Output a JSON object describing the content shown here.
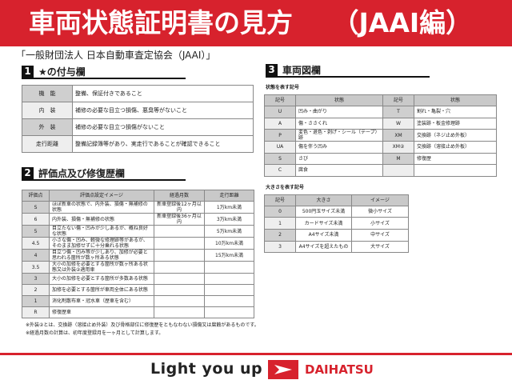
{
  "header": {
    "title": "車両状態証明書の見方　　（JAAI編）"
  },
  "subtitle": "「一般財団法人 日本自動車査定協会（JAAI）」",
  "section1": {
    "num": "1",
    "title": "★の付与欄",
    "rows": [
      {
        "k": "機　能",
        "v": "整備、保証付きであること"
      },
      {
        "k": "内　装",
        "v": "補修の必要な目立つ損傷、悪臭等がないこと"
      },
      {
        "k": "外　装",
        "v": "補修の必要な目立つ損傷がないこと"
      },
      {
        "k": "走行距離",
        "v": "整備記録簿等があり、実走行であることが確認できること"
      }
    ]
  },
  "section2": {
    "num": "2",
    "title": "評価点及び修復歴欄",
    "headers": [
      "評価点",
      "評価点設定イメージ",
      "経過月数",
      "走行距離"
    ],
    "rows": [
      [
        "S",
        "ほぼ新車の状態で、内外装、損傷・無補修の状態",
        "新車登録後12ヶ月以内",
        "1万km未満"
      ],
      [
        "6",
        "内外装、損傷・無補修の状態",
        "新車登録後36ヶ月以内",
        "3万km未満"
      ],
      [
        "5",
        "目立たない傷・凹みが少しあるが、概ね良好な状態",
        "",
        "5万km未満"
      ],
      [
        "4.5",
        "小さな傷・凹み、軽微な修理跡等があるが、そのまま加修せずに十分乗れる状態",
        "",
        "10万km未満"
      ],
      [
        "4",
        "目立つ傷・凹み等が少しあり、加修が必要と思われる箇所が数ヶ所ある状態",
        "",
        "15万km未満"
      ],
      [
        "3.5",
        "大小の加修を必要とする箇所が数ヶ所ある状態又は外装②適用車",
        "",
        ""
      ],
      [
        "3",
        "大小の加修を必要とする箇所が多数ある状態",
        "",
        ""
      ],
      [
        "2",
        "加修を必要とする箇所が車両全体にある状態",
        "",
        ""
      ],
      [
        "1",
        "消化剤散布車・冠水車（歴車を含む）",
        "",
        ""
      ],
      [
        "R",
        "修復歴車",
        "",
        ""
      ]
    ]
  },
  "notes": [
    "※外装②とは、交換跡（溶接止め外装）及び骨格部位に修復歴をともなわない損傷又は腐蝕があるものです。",
    "※経過月数の計算は、初年度登録月を一ヶ月として計算します。"
  ],
  "section3": {
    "num": "3",
    "title": "車両図欄",
    "state_label": "状態を表す記号",
    "state_headers": [
      "記号",
      "状態",
      "記号",
      "状態"
    ],
    "state_rows": [
      [
        "U",
        "凹み・曲がり",
        "T",
        "割れ・亀裂・穴"
      ],
      [
        "A",
        "傷・ささくれ",
        "W",
        "塗装跡・板金修理跡"
      ],
      [
        "P",
        "変色・退色・剥げ・シール（テープ）跡",
        "XM",
        "交換跡（ネジ止め外板）"
      ],
      [
        "UA",
        "傷を伴う凹み",
        "XM②",
        "交換跡（溶接止め外板）"
      ],
      [
        "S",
        "さび",
        "M",
        "修復歴"
      ],
      [
        "C",
        "腐食",
        "",
        ""
      ]
    ],
    "size_label": "大きさを表す記号",
    "size_headers": [
      "記号",
      "大きさ",
      "イメージ"
    ],
    "size_rows": [
      [
        "0",
        "500円玉サイズ未満",
        "微小サイズ"
      ],
      [
        "1",
        "カードサイズ未満",
        "小サイズ"
      ],
      [
        "2",
        "A4サイズ未満",
        "中サイズ"
      ],
      [
        "3",
        "A4サイズを超えたもの",
        "大サイズ"
      ]
    ]
  },
  "footer": {
    "slogan": "Light you up",
    "brand": "DAIHATSU"
  },
  "colors": {
    "brand_red": "#d7222d"
  }
}
